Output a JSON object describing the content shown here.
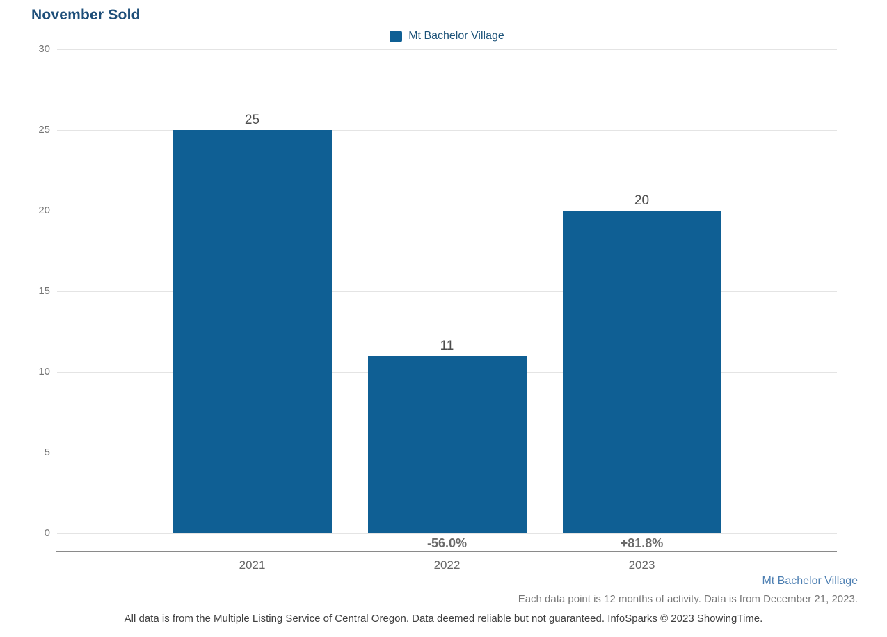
{
  "chart_data": {
    "type": "bar",
    "title": "November Sold",
    "categories": [
      "2021",
      "2022",
      "2023"
    ],
    "series": [
      {
        "name": "Mt Bachelor Village",
        "values": [
          25,
          11,
          20
        ]
      }
    ],
    "bar_value_labels": [
      "25",
      "11",
      "20"
    ],
    "pct_change_labels": [
      "",
      "-56.0%",
      "+81.8%"
    ],
    "ylim": [
      0,
      30
    ],
    "yticks": [
      0,
      5,
      10,
      15,
      20,
      25,
      30
    ],
    "grid": true,
    "legend_position": "top-center",
    "bar_color": "#0f5f94"
  },
  "legend": {
    "label": "Mt Bachelor Village",
    "swatch_color": "#0f5f94"
  },
  "footer": {
    "series_label": "Mt Bachelor Village",
    "note_line1": "Each data point is 12 months of activity. Data is from December 21, 2023.",
    "note_line2": "All data is from the Multiple Listing Service of Central Oregon. Data deemed reliable but not guaranteed. InfoSparks © 2023 ShowingTime."
  },
  "colors": {
    "bar": "#0f5f94",
    "title_text": "#1d4e79",
    "legend_text": "#1d5379",
    "footer_series_text": "#4d7fb2",
    "gridline": "#e4e4e4",
    "axis_line": "#8a8a8a"
  }
}
